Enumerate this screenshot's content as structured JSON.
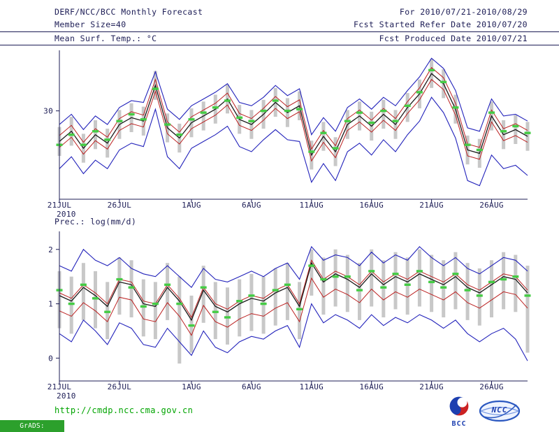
{
  "header": {
    "title": "DERF/NCC/BCC Monthly Forecast",
    "member_size": "Member Size=40",
    "for_range": "For 2010/07/21-2010/08/29",
    "fcst_started": "Fcst Started Refer Date 2010/07/20",
    "fcst_produced": "Fcst Produced Date 2010/07/21"
  },
  "footer": {
    "url": "http://cmdp.ncc.cma.gov.cn",
    "grads_stamp": "GrADS: COLA/IGES",
    "bcc_label": "BCC",
    "ncc_label": "NCC"
  },
  "colors": {
    "ink": "#1c1c55",
    "blue_line": "#2323bb",
    "red_line": "#bb2222",
    "black_line": "#1a1a1a",
    "green_marker": "#44cc44",
    "spread_bar": "#c8c8c8",
    "url_green": "#00a400",
    "stamp_green": "#2ca02c",
    "logo_blue": "#1d3fb0",
    "logo_red": "#cc2222"
  },
  "chart_data": [
    {
      "type": "line",
      "title": "Mean Surf. Temp.: °C",
      "xlabel": "",
      "ylabel": "",
      "x_year": "2010",
      "x_tick_labels": [
        "21JUL",
        "26JUL",
        "1AUG",
        "6AUG",
        "11AUG",
        "16AUG",
        "21AUG",
        "26AUG"
      ],
      "x_tick_positions": [
        0,
        5,
        11,
        16,
        21,
        26,
        31,
        36
      ],
      "ylim": [
        19.6,
        36.8
      ],
      "yticks": [
        30
      ],
      "grid": false,
      "legend": "none",
      "bars": {
        "name": "ensemble-spread",
        "color": "#c8c8c8",
        "low": [
          24.7,
          25.9,
          23.9,
          25.5,
          24.5,
          26.7,
          27.5,
          27.1,
          31.3,
          26.3,
          25.1,
          26.9,
          27.7,
          28.5,
          29.7,
          27.3,
          26.7,
          27.9,
          29.3,
          28.1,
          28.9,
          23.1,
          25.3,
          23.5,
          26.7,
          27.7,
          26.5,
          27.9,
          26.7,
          28.7,
          30.3,
          32.7,
          31.5,
          28.5,
          23.7,
          23.3,
          27.7,
          25.5,
          26.1,
          25.3
        ],
        "high": [
          28.1,
          29.3,
          27.3,
          28.9,
          27.9,
          30.1,
          30.9,
          30.5,
          34.7,
          29.7,
          28.5,
          30.3,
          31.1,
          31.9,
          33.1,
          30.7,
          30.1,
          31.3,
          32.7,
          31.5,
          32.3,
          26.5,
          28.7,
          26.9,
          30.1,
          31.1,
          29.9,
          31.3,
          30.1,
          32.1,
          33.7,
          36.1,
          34.9,
          31.9,
          27.1,
          26.7,
          31.1,
          28.9,
          29.5,
          28.7
        ]
      },
      "series": [
        {
          "name": "ensemble-max",
          "color": "#2323bb",
          "width": 1.1,
          "values": [
            28.4,
            29.6,
            27.8,
            29.4,
            28.4,
            30.4,
            31.2,
            31.0,
            34.6,
            30.2,
            29.0,
            30.6,
            31.4,
            32.2,
            33.2,
            31.0,
            30.6,
            31.6,
            33.0,
            31.8,
            32.6,
            27.2,
            29.2,
            27.6,
            30.4,
            31.4,
            30.2,
            31.6,
            30.6,
            32.4,
            34.0,
            36.2,
            35.0,
            32.4,
            28.0,
            27.6,
            31.4,
            29.4,
            29.6,
            28.8
          ]
        },
        {
          "name": "ensemble-min",
          "color": "#2323bb",
          "width": 1.1,
          "values": [
            23.2,
            24.6,
            22.6,
            24.2,
            23.2,
            25.4,
            26.2,
            25.8,
            30.2,
            24.6,
            23.2,
            25.6,
            26.4,
            27.2,
            28.2,
            25.8,
            25.2,
            26.6,
            27.8,
            26.6,
            26.4,
            21.6,
            23.8,
            21.8,
            25.2,
            26.2,
            24.8,
            26.6,
            25.2,
            27.2,
            28.8,
            31.6,
            29.8,
            26.8,
            21.8,
            21.2,
            24.8,
            23.2,
            23.6,
            22.4
          ]
        },
        {
          "name": "upper-quartile",
          "color": "#bb2222",
          "width": 1,
          "values": [
            27.1,
            28.3,
            26.3,
            27.9,
            26.9,
            29.1,
            29.9,
            29.5,
            33.7,
            28.7,
            27.5,
            29.3,
            30.1,
            30.9,
            32.1,
            29.7,
            29.1,
            30.3,
            31.7,
            30.5,
            31.3,
            25.5,
            27.7,
            25.9,
            29.1,
            30.1,
            28.9,
            30.3,
            29.1,
            31.1,
            32.7,
            35.1,
            33.9,
            30.9,
            26.1,
            25.7,
            30.1,
            27.9,
            28.5,
            27.7
          ]
        },
        {
          "name": "lower-quartile",
          "color": "#bb2222",
          "width": 1,
          "values": [
            25.7,
            26.9,
            24.9,
            26.5,
            25.5,
            27.7,
            28.5,
            28.1,
            32.3,
            27.3,
            26.1,
            27.9,
            28.7,
            29.5,
            30.7,
            28.3,
            27.7,
            28.9,
            30.3,
            29.1,
            29.9,
            24.1,
            26.3,
            24.5,
            27.7,
            28.7,
            27.5,
            28.9,
            27.7,
            29.7,
            31.3,
            33.7,
            32.5,
            29.5,
            24.7,
            24.3,
            28.7,
            26.5,
            27.1,
            26.3
          ]
        },
        {
          "name": "ensemble-mean",
          "color": "#1a1a1a",
          "width": 1.3,
          "values": [
            26.4,
            27.6,
            25.6,
            27.2,
            26.2,
            28.4,
            29.2,
            28.8,
            33.0,
            28.0,
            26.8,
            28.6,
            29.4,
            30.2,
            31.4,
            29.0,
            28.4,
            29.6,
            31.0,
            29.8,
            30.6,
            24.8,
            27.0,
            25.2,
            28.4,
            29.4,
            28.2,
            29.6,
            28.4,
            30.4,
            32.0,
            34.4,
            33.2,
            30.2,
            25.4,
            25.0,
            29.4,
            27.2,
            27.8,
            27.0
          ]
        }
      ],
      "markers": {
        "name": "observation",
        "color": "#44cc44",
        "values": [
          26.0,
          27.2,
          26.0,
          27.6,
          26.6,
          28.8,
          29.6,
          29.0,
          32.6,
          28.4,
          27.2,
          29.0,
          29.8,
          30.4,
          31.2,
          29.2,
          28.8,
          30.0,
          31.2,
          30.0,
          30.2,
          25.2,
          27.4,
          25.6,
          28.8,
          29.8,
          28.6,
          30.0,
          28.8,
          30.6,
          32.2,
          34.8,
          33.4,
          30.4,
          26.0,
          25.4,
          29.8,
          27.6,
          28.2,
          27.4
        ]
      }
    },
    {
      "type": "line",
      "title": "Prec.: log(mm/d)",
      "xlabel": "",
      "ylabel": "",
      "x_year": "2010",
      "x_tick_labels": [
        "21JUL",
        "26JUL",
        "1AUG",
        "6AUG",
        "11AUG",
        "16AUG",
        "21AUG",
        "26AUG"
      ],
      "x_tick_positions": [
        0,
        5,
        11,
        16,
        21,
        26,
        31,
        36
      ],
      "ylim": [
        -0.42,
        2.28
      ],
      "yticks": [
        0,
        1,
        2
      ],
      "grid": false,
      "legend": "none",
      "bars": {
        "name": "ensemble-spread",
        "color": "#c8c8c8",
        "low": [
          0.55,
          0.45,
          0.7,
          0.55,
          0.35,
          0.8,
          0.75,
          0.4,
          0.35,
          0.7,
          -0.1,
          0.1,
          0.65,
          0.35,
          0.25,
          0.4,
          0.5,
          0.45,
          0.6,
          0.7,
          0.35,
          1.15,
          0.8,
          0.95,
          0.85,
          0.7,
          0.95,
          0.75,
          0.9,
          0.8,
          0.95,
          0.85,
          0.75,
          0.9,
          0.7,
          0.6,
          0.75,
          0.9,
          0.85,
          0.1
        ],
        "high": [
          1.6,
          1.5,
          1.75,
          1.6,
          1.4,
          1.85,
          1.8,
          1.45,
          1.4,
          1.75,
          1.5,
          1.15,
          1.7,
          1.4,
          1.3,
          1.45,
          1.55,
          1.5,
          1.65,
          1.75,
          1.4,
          2.0,
          1.85,
          2.0,
          1.9,
          1.75,
          2.0,
          1.8,
          1.95,
          1.85,
          2.0,
          1.9,
          1.8,
          1.95,
          1.75,
          1.65,
          1.8,
          1.95,
          1.9,
          1.7
        ]
      },
      "series": [
        {
          "name": "ensemble-max",
          "color": "#2323bb",
          "width": 1.1,
          "values": [
            1.7,
            1.6,
            2.0,
            1.8,
            1.7,
            1.85,
            1.65,
            1.55,
            1.5,
            1.7,
            1.5,
            1.3,
            1.65,
            1.45,
            1.4,
            1.5,
            1.6,
            1.5,
            1.65,
            1.75,
            1.45,
            2.05,
            1.8,
            1.9,
            1.85,
            1.7,
            1.95,
            1.75,
            1.9,
            1.8,
            2.05,
            1.85,
            1.7,
            1.85,
            1.65,
            1.55,
            1.7,
            1.85,
            1.8,
            1.6
          ]
        },
        {
          "name": "ensemble-min",
          "color": "#2323bb",
          "width": 1.1,
          "values": [
            0.45,
            0.3,
            0.7,
            0.5,
            0.25,
            0.65,
            0.55,
            0.25,
            0.2,
            0.55,
            0.3,
            0.05,
            0.5,
            0.2,
            0.1,
            0.3,
            0.4,
            0.35,
            0.5,
            0.6,
            0.2,
            1.0,
            0.65,
            0.8,
            0.7,
            0.55,
            0.8,
            0.6,
            0.75,
            0.65,
            0.8,
            0.7,
            0.55,
            0.7,
            0.45,
            0.3,
            0.45,
            0.55,
            0.35,
            -0.05
          ]
        },
        {
          "name": "upper-quartile",
          "color": "#bb2222",
          "width": 1,
          "values": [
            1.2,
            1.1,
            1.35,
            1.2,
            1.0,
            1.45,
            1.4,
            1.05,
            1.0,
            1.35,
            1.1,
            0.75,
            1.3,
            1.0,
            0.9,
            1.05,
            1.15,
            1.1,
            1.25,
            1.35,
            1.0,
            1.8,
            1.45,
            1.6,
            1.5,
            1.35,
            1.6,
            1.4,
            1.55,
            1.45,
            1.6,
            1.5,
            1.4,
            1.55,
            1.35,
            1.25,
            1.4,
            1.55,
            1.5,
            1.25
          ]
        },
        {
          "name": "lower-quartile",
          "color": "#bb2222",
          "width": 1,
          "values": [
            0.87,
            0.77,
            1.02,
            0.87,
            0.67,
            1.12,
            1.07,
            0.72,
            0.67,
            1.02,
            0.77,
            0.42,
            0.97,
            0.67,
            0.57,
            0.72,
            0.82,
            0.77,
            0.92,
            1.02,
            0.67,
            1.47,
            1.12,
            1.27,
            1.17,
            1.02,
            1.27,
            1.07,
            1.22,
            1.12,
            1.27,
            1.17,
            1.07,
            1.22,
            1.02,
            0.92,
            1.07,
            1.22,
            1.17,
            0.92
          ]
        },
        {
          "name": "ensemble-mean",
          "color": "#1a1a1a",
          "width": 1.3,
          "values": [
            1.15,
            1.05,
            1.3,
            1.15,
            0.95,
            1.4,
            1.35,
            1.0,
            0.95,
            1.3,
            1.05,
            0.7,
            1.25,
            0.95,
            0.85,
            1.0,
            1.1,
            1.05,
            1.2,
            1.3,
            0.95,
            1.75,
            1.4,
            1.55,
            1.45,
            1.3,
            1.55,
            1.35,
            1.5,
            1.4,
            1.55,
            1.45,
            1.35,
            1.5,
            1.3,
            1.2,
            1.35,
            1.5,
            1.45,
            1.2
          ]
        }
      ],
      "markers": {
        "name": "observation",
        "color": "#44cc44",
        "values": [
          1.25,
          1.0,
          1.35,
          1.1,
          0.85,
          1.45,
          1.3,
          0.95,
          1.0,
          1.35,
          1.0,
          0.6,
          1.3,
          0.85,
          0.75,
          1.05,
          1.15,
          1.0,
          1.25,
          1.35,
          0.9,
          1.7,
          1.45,
          1.5,
          1.5,
          1.25,
          1.6,
          1.3,
          1.55,
          1.35,
          1.6,
          1.4,
          1.3,
          1.55,
          1.25,
          1.15,
          1.4,
          1.45,
          1.5,
          1.15
        ]
      }
    }
  ]
}
